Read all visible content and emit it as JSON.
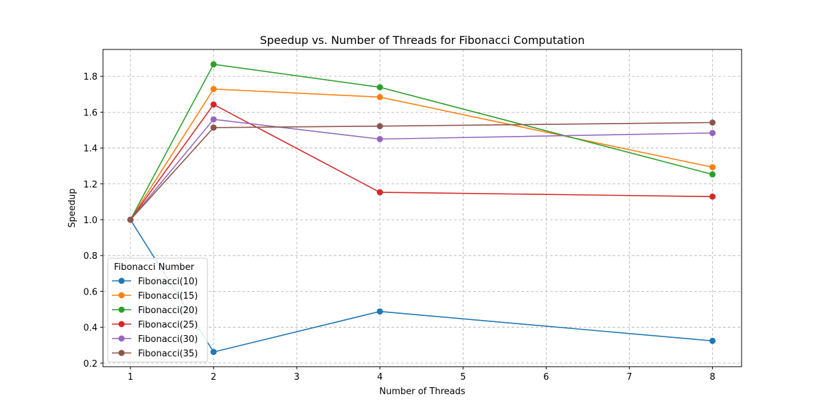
{
  "chart_data": {
    "type": "line",
    "title": "Speedup vs. Number of Threads for Fibonacci Computation",
    "xlabel": "Number of Threads",
    "ylabel": "Speedup",
    "x": [
      1,
      2,
      4,
      8
    ],
    "xlim": [
      0.67,
      8.35
    ],
    "ylim": [
      0.18,
      1.95
    ],
    "xticks": [
      1,
      2,
      3,
      4,
      5,
      6,
      7,
      8
    ],
    "yticks": [
      0.2,
      0.4,
      0.6,
      0.8,
      1.0,
      1.2,
      1.4,
      1.6,
      1.8
    ],
    "grid": true,
    "legend_title": "Fibonacci Number",
    "legend_position": "lower-left",
    "series": [
      {
        "name": "Fibonacci(10)",
        "color": "#1f77b4",
        "values": [
          1.0,
          0.262,
          0.488,
          0.324
        ]
      },
      {
        "name": "Fibonacci(15)",
        "color": "#ff7f0e",
        "values": [
          1.0,
          1.729,
          1.684,
          1.293
        ]
      },
      {
        "name": "Fibonacci(20)",
        "color": "#2ca02c",
        "values": [
          1.0,
          1.867,
          1.739,
          1.253
        ]
      },
      {
        "name": "Fibonacci(25)",
        "color": "#d62728",
        "values": [
          1.0,
          1.643,
          1.153,
          1.129
        ]
      },
      {
        "name": "Fibonacci(30)",
        "color": "#9467bd",
        "values": [
          1.0,
          1.56,
          1.45,
          1.484
        ]
      },
      {
        "name": "Fibonacci(35)",
        "color": "#8c564b",
        "values": [
          1.0,
          1.514,
          1.522,
          1.542
        ]
      }
    ]
  }
}
